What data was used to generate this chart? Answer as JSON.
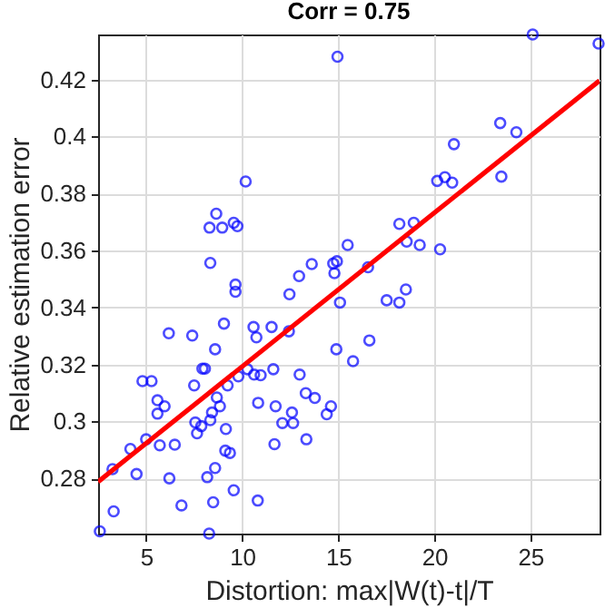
{
  "chart_data": {
    "type": "scatter",
    "title": "Corr = 0.75",
    "xlabel": "Distortion: max|W(t)-t|/T",
    "ylabel": "Relative estimation error",
    "xlim": [
      2.5,
      28.6
    ],
    "ylim": [
      0.2606,
      0.4358
    ],
    "xticks": [
      5,
      10,
      15,
      20,
      25
    ],
    "yticks": [
      0.28,
      0.3,
      0.32,
      0.34,
      0.36,
      0.38,
      0.4,
      0.42
    ],
    "grid": true,
    "series": [
      {
        "marker": "circle",
        "color": "#0000ff",
        "x": [
          10.18,
          8.65,
          8.3,
          8.96,
          9.56,
          9.75,
          8.34,
          9.65,
          9.65,
          12.46,
          12.96,
          13.62,
          14.96,
          25.12,
          28.55,
          23.43,
          24.27,
          21.02,
          20.15,
          20.55,
          20.93,
          23.49,
          18.18,
          18.93,
          18.56,
          19.24,
          20.3,
          15.49,
          14.74,
          14.93,
          14.8,
          16.55,
          18.52,
          17.52,
          18.18,
          15.09,
          2.59,
          3.25,
          3.31,
          4.18,
          4.5,
          5.0,
          4.81,
          5.28,
          5.59,
          5.59,
          5.96,
          5.71,
          6.49,
          6.21,
          6.18,
          7.4,
          6.84,
          7.5,
          7.93,
          8.06,
          8.59,
          9.05,
          7.56,
          7.87,
          7.65,
          8.34,
          8.43,
          8.68,
          8.84,
          9.15,
          9.12,
          9.36,
          8.59,
          8.18,
          8.49,
          8.28,
          9.56,
          9.24,
          9.8,
          10.27,
          10.62,
          10.96,
          10.83,
          10.81,
          10.59,
          10.74,
          11.62,
          11.53,
          12.43,
          11.74,
          11.68,
          12.09,
          12.59,
          12.65,
          12.99,
          13.31,
          13.78,
          13.34,
          14.4,
          16.62,
          14.9,
          15.77,
          14.62
        ],
        "values": [
          0.3842,
          0.3729,
          0.368,
          0.368,
          0.3697,
          0.3685,
          0.3556,
          0.348,
          0.3455,
          0.3446,
          0.351,
          0.3552,
          0.428,
          0.4358,
          0.4326,
          0.4047,
          0.4015,
          0.3973,
          0.3844,
          0.3857,
          0.3838,
          0.3859,
          0.3693,
          0.3697,
          0.3631,
          0.3619,
          0.3604,
          0.3619,
          0.3554,
          0.3562,
          0.352,
          0.3541,
          0.3463,
          0.3425,
          0.3417,
          0.3417,
          0.2614,
          0.2832,
          0.2684,
          0.2903,
          0.2815,
          0.2937,
          0.3141,
          0.3141,
          0.3074,
          0.3027,
          0.3053,
          0.2916,
          0.2918,
          0.28,
          0.3309,
          0.3301,
          0.2705,
          0.3126,
          0.3185,
          0.3185,
          0.3253,
          0.3343,
          0.2996,
          0.2983,
          0.2958,
          0.3004,
          0.3031,
          0.3084,
          0.3053,
          0.2973,
          0.2897,
          0.2889,
          0.2836,
          0.2804,
          0.2716,
          0.2606,
          0.2758,
          0.3126,
          0.3158,
          0.3183,
          0.3164,
          0.3162,
          0.3065,
          0.2722,
          0.3331,
          0.3295,
          0.3183,
          0.3331,
          0.3316,
          0.3053,
          0.292,
          0.2994,
          0.3031,
          0.2994,
          0.3164,
          0.3099,
          0.3082,
          0.2937,
          0.3025,
          0.3284,
          0.3253,
          0.3211,
          0.3053
        ]
      },
      {
        "type": "line",
        "color": "#ff0000",
        "x": [
          2.5,
          28.6
        ],
        "values": [
          0.2788,
          0.4196
        ]
      }
    ]
  }
}
